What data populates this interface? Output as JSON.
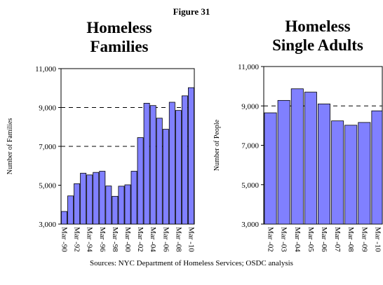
{
  "figure_label": "Figure 31",
  "source_note": "Sources:  NYC Department of Homeless Services; OSDC analysis",
  "chart_data": [
    {
      "type": "bar",
      "title": "Homeless Families",
      "title_lines": [
        "Homeless",
        "Families"
      ],
      "ylabel": "Number of Families",
      "xlabel": "",
      "ylim": [
        3000,
        11000
      ],
      "y_ticks": [
        "3,000",
        "5,000",
        "7,000",
        "9,000",
        "11,000"
      ],
      "y_tick_values": [
        3000,
        5000,
        7000,
        9000,
        11000
      ],
      "grid": "dashed horizontal at 7,000 and 9,000",
      "legend": "none",
      "bar_color": "#8080ff",
      "categories": [
        "Mar -90",
        "",
        "Mar -92",
        "",
        "Mar -94",
        "",
        "Mar -96",
        "",
        "Mar -98",
        "",
        "Mar -00",
        "",
        "Mar -02",
        "",
        "Mar -04",
        "",
        "Mar -06",
        "",
        "Mar -08",
        "",
        "Mar -10"
      ],
      "values": [
        3650,
        4450,
        5080,
        5620,
        5530,
        5660,
        5720,
        4960,
        4430,
        4950,
        5020,
        5720,
        7450,
        9220,
        9100,
        8450,
        7880,
        9270,
        8850,
        9600,
        10020
      ]
    },
    {
      "type": "bar",
      "title": "Homeless Single Adults",
      "title_lines": [
        "Homeless",
        "Single Adults"
      ],
      "ylabel": "Number of People",
      "xlabel": "",
      "ylim": [
        3000,
        11000
      ],
      "y_ticks": [
        "3,000",
        "5,000",
        "7,000",
        "9,000",
        "11,000"
      ],
      "y_tick_values": [
        3000,
        5000,
        7000,
        9000,
        11000
      ],
      "grid": "dashed horizontal at 9,000",
      "legend": "none",
      "bar_color": "#8080ff",
      "categories": [
        "Mar -02",
        "Mar -03",
        "Mar -04",
        "Mar -05",
        "Mar -06",
        "Mar -07",
        "Mar -08",
        "Mar -09",
        "Mar -10"
      ],
      "values": [
        8650,
        9280,
        9870,
        9700,
        9100,
        8240,
        8020,
        8160,
        8750
      ]
    }
  ]
}
